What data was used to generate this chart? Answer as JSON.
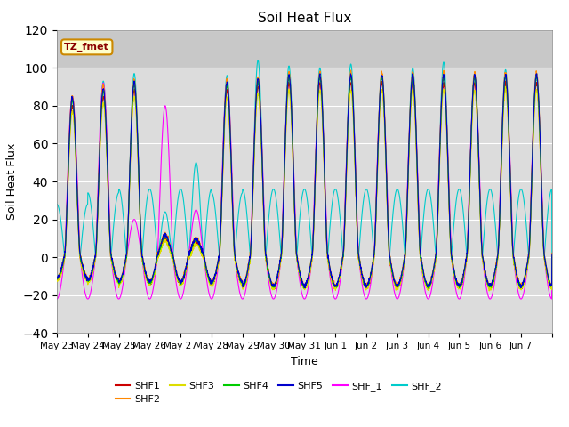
{
  "title": "Soil Heat Flux",
  "ylabel": "Soil Heat Flux",
  "xlabel": "Time",
  "ylim": [
    -40,
    120
  ],
  "yticks": [
    -40,
    -20,
    0,
    20,
    40,
    60,
    80,
    100,
    120
  ],
  "xlabels": [
    "May 23",
    "May 24",
    "May 25",
    "May 26",
    "May 27",
    "May 28",
    "May 29",
    "May 30",
    "May 31",
    "Jun 1",
    "Jun 2",
    "Jun 3",
    "Jun 4",
    "Jun 5",
    "Jun 6",
    "Jun 7"
  ],
  "series_colors": {
    "SHF1": "#cc0000",
    "SHF2": "#ff8800",
    "SHF3": "#dddd00",
    "SHF4": "#00cc00",
    "SHF5": "#0000cc",
    "SHF_1": "#ff00ff",
    "SHF_2": "#00cccc"
  },
  "annotation_text": "TZ_fmet",
  "annotation_bg": "#ffffcc",
  "annotation_border": "#cc8800",
  "plot_bg": "#dcdcdc",
  "plot_bg_upper": "#c8c8c8",
  "grid_color": "white",
  "n_days": 16,
  "points_per_day": 144,
  "figsize": [
    6.4,
    4.8
  ],
  "dpi": 100
}
